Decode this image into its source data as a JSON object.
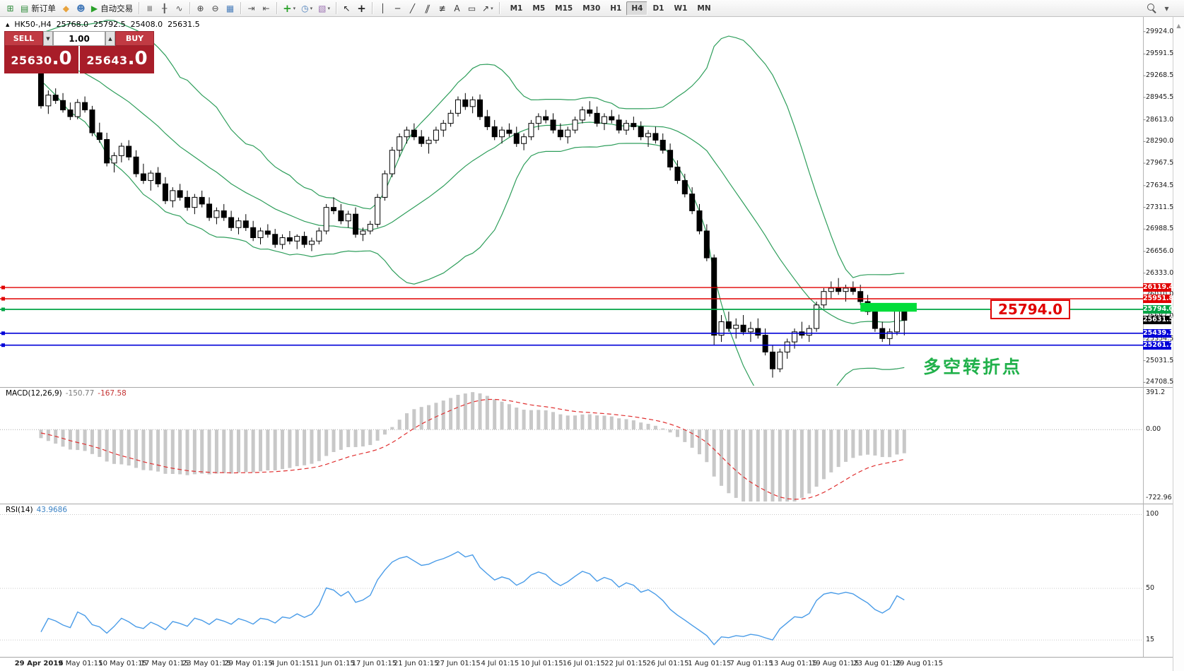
{
  "toolbar": {
    "items": [
      {
        "name": "new-chart-button",
        "glyph": "⊞",
        "color": "#2e8b3a"
      },
      {
        "name": "new-order-button",
        "glyph": "▤",
        "color": "#2e8b3a",
        "label": "新订单"
      },
      {
        "name": "metaeditor-button",
        "glyph": "◆",
        "color": "#e8a33d"
      },
      {
        "name": "community-button",
        "glyph": "☻",
        "color": "#4a7ebb"
      },
      {
        "name": "autotrading-button",
        "glyph": "▶",
        "color": "#2aa12a",
        "label": "自动交易"
      },
      {
        "sep": true
      },
      {
        "name": "bar-chart-button",
        "glyph": "≡",
        "color": "#555",
        "rotate": true
      },
      {
        "name": "candlestick-chart-button",
        "glyph": "╂",
        "color": "#555"
      },
      {
        "name": "line-chart-button",
        "glyph": "∿",
        "color": "#555"
      },
      {
        "sep": true
      },
      {
        "name": "zoom-in-button",
        "glyph": "⊕",
        "color": "#444"
      },
      {
        "name": "zoom-out-button",
        "glyph": "⊖",
        "color": "#444"
      },
      {
        "name": "tile-windows-button",
        "glyph": "▦",
        "color": "#4a7ebb"
      },
      {
        "sep": true
      },
      {
        "name": "auto-scroll-button",
        "glyph": "⇥",
        "color": "#555"
      },
      {
        "name": "chart-shift-button",
        "glyph": "⇤",
        "color": "#555"
      },
      {
        "sep": true
      },
      {
        "name": "indicators-dropdown",
        "glyph": "+",
        "color": "#2aa12a",
        "big": true,
        "dropdown": true
      },
      {
        "name": "periods-dropdown",
        "glyph": "◷",
        "color": "#4a7ebb",
        "dropdown": true
      },
      {
        "name": "templates-dropdown",
        "glyph": "▧",
        "color": "#9a6fb0",
        "dropdown": true
      },
      {
        "sep": true
      },
      {
        "name": "cursor-button",
        "glyph": "↖",
        "color": "#222"
      },
      {
        "name": "crosshair-button",
        "glyph": "+",
        "color": "#222",
        "big": true
      },
      {
        "sep": true
      },
      {
        "name": "vertical-line-button",
        "glyph": "│",
        "color": "#333"
      },
      {
        "name": "horizontal-line-button",
        "glyph": "─",
        "color": "#333"
      },
      {
        "name": "trendline-button",
        "glyph": "╱",
        "color": "#333"
      },
      {
        "name": "channel-button",
        "glyph": "∥",
        "color": "#333",
        "skew": true
      },
      {
        "name": "fibonacci-button",
        "glyph": "≢",
        "color": "#333"
      },
      {
        "name": "text-button",
        "glyph": "A",
        "color": "#333"
      },
      {
        "name": "label-button",
        "glyph": "▭",
        "color": "#333"
      },
      {
        "name": "arrows-dropdown",
        "glyph": "↗",
        "color": "#333",
        "dropdown": true
      },
      {
        "sep": true
      }
    ],
    "timeframes": [
      "M1",
      "M5",
      "M15",
      "M30",
      "H1",
      "H4",
      "D1",
      "W1",
      "MN"
    ],
    "active_timeframe": "H4",
    "right_items": [
      {
        "name": "search-button",
        "css": "search"
      },
      {
        "name": "toolbar-overflow-button",
        "glyph": "▾",
        "color": "#555"
      }
    ]
  },
  "chart_header": {
    "marker": "▲",
    "symbol_period": "HK50-,H4",
    "open": "25768.0",
    "high": "25792.5",
    "low": "25408.0",
    "close": "25631.5"
  },
  "trade_panel": {
    "sell_label": "SELL",
    "buy_label": "BUY",
    "lot_size": "1.00",
    "spin_down": "▼",
    "spin_up": "▲",
    "sell_price": "25630",
    "sell_pips": ".0",
    "buy_price": "25643",
    "buy_pips": ".0"
  },
  "indicators": {
    "macd": {
      "name": "MACD(12,26,9)",
      "value_main": "-150.77",
      "value_signal": "-167.58"
    },
    "rsi": {
      "name": "RSI(14)",
      "value": "43.9686"
    }
  },
  "annotations": {
    "callout_text": "25794.0",
    "turning_point_text": "多空转折点"
  },
  "ui": {
    "scrollbar_up": "▲"
  },
  "time_axis": {
    "labels": [
      "29 Apr 2019",
      "6 May 01:15",
      "10 May 01:15",
      "17 May 01:15",
      "23 May 01:15",
      "29 May 01:15",
      "4 Jun 01:15",
      "11 Jun 01:15",
      "17 Jun 01:15",
      "21 Jun 01:15",
      "27 Jun 01:15",
      "4 Jul 01:15",
      "10 Jul 01:15",
      "16 Jul 01:15",
      "22 Jul 01:15",
      "26 Jul 01:15",
      "1 Aug 01:15",
      "7 Aug 01:15",
      "13 Aug 01:15",
      "19 Aug 01:15",
      "23 Aug 01:15",
      "29 Aug 01:15"
    ]
  },
  "chart_data": [
    {
      "id": "price",
      "type": "candlestick",
      "symbol": "HK50-",
      "timeframe": "H4",
      "ylim": [
        24660,
        30100
      ],
      "yticks": [
        29924.0,
        29591.5,
        29268.5,
        28945.5,
        28613.0,
        28290.0,
        27967.5,
        27634.5,
        27311.5,
        26988.5,
        26656.0,
        26333.0,
        26010.0,
        25687.0,
        25354.5,
        25031.5,
        24708.5
      ],
      "bull_color": "#ffffff",
      "bear_color": "#000000",
      "wick_color": "#000000",
      "bollinger": {
        "period": 20,
        "deviation": 2,
        "color": "#2e9e5b"
      },
      "warmup_closes": [
        29640,
        29685,
        29625,
        29670,
        29610,
        29655,
        29595,
        29640,
        29580,
        29625,
        29565,
        29610,
        29550,
        29595,
        29535,
        29580,
        29520,
        29565,
        29505,
        29450
      ],
      "ohlc": [
        [
          29300,
          29420,
          28780,
          28820
        ],
        [
          28820,
          29050,
          28700,
          28980
        ],
        [
          28980,
          29080,
          28850,
          28900
        ],
        [
          28900,
          29010,
          28720,
          28760
        ],
        [
          28760,
          28870,
          28610,
          28660
        ],
        [
          28660,
          28920,
          28620,
          28870
        ],
        [
          28870,
          28960,
          28720,
          28760
        ],
        [
          28760,
          28820,
          28370,
          28420
        ],
        [
          28420,
          28570,
          28270,
          28320
        ],
        [
          28320,
          28420,
          27920,
          27970
        ],
        [
          27970,
          28130,
          27830,
          28080
        ],
        [
          28080,
          28270,
          27980,
          28220
        ],
        [
          28220,
          28310,
          28010,
          28060
        ],
        [
          28060,
          28160,
          27760,
          27810
        ],
        [
          27810,
          27960,
          27660,
          27710
        ],
        [
          27710,
          27860,
          27560,
          27820
        ],
        [
          27820,
          27910,
          27610,
          27660
        ],
        [
          27660,
          27760,
          27360,
          27410
        ],
        [
          27410,
          27610,
          27310,
          27560
        ],
        [
          27560,
          27660,
          27410,
          27460
        ],
        [
          27460,
          27560,
          27260,
          27310
        ],
        [
          27310,
          27510,
          27210,
          27460
        ],
        [
          27460,
          27560,
          27310,
          27360
        ],
        [
          27360,
          27460,
          27110,
          27160
        ],
        [
          27160,
          27310,
          27060,
          27260
        ],
        [
          27260,
          27360,
          27110,
          27160
        ],
        [
          27160,
          27260,
          26960,
          27010
        ],
        [
          27010,
          27160,
          26910,
          27110
        ],
        [
          27110,
          27210,
          26960,
          27010
        ],
        [
          27010,
          27110,
          26810,
          26860
        ],
        [
          26860,
          27010,
          26760,
          26960
        ],
        [
          26960,
          27060,
          26860,
          26910
        ],
        [
          26910,
          26990,
          26710,
          26760
        ],
        [
          26760,
          26910,
          26690,
          26860
        ],
        [
          26860,
          26960,
          26760,
          26810
        ],
        [
          26810,
          26910,
          26690,
          26880
        ],
        [
          26880,
          26950,
          26710,
          26760
        ],
        [
          26760,
          26860,
          26660,
          26810
        ],
        [
          26810,
          27010,
          26760,
          26960
        ],
        [
          26960,
          27360,
          26910,
          27310
        ],
        [
          27310,
          27460,
          27210,
          27260
        ],
        [
          27260,
          27360,
          27060,
          27110
        ],
        [
          27110,
          27260,
          27010,
          27210
        ],
        [
          27210,
          27310,
          26860,
          26910
        ],
        [
          26910,
          27010,
          26810,
          26960
        ],
        [
          26960,
          27110,
          26910,
          27060
        ],
        [
          27060,
          27510,
          27010,
          27460
        ],
        [
          27460,
          27860,
          27410,
          27810
        ],
        [
          27810,
          28210,
          27760,
          28160
        ],
        [
          28160,
          28410,
          28060,
          28360
        ],
        [
          28360,
          28510,
          28260,
          28460
        ],
        [
          28460,
          28560,
          28310,
          28360
        ],
        [
          28360,
          28460,
          28210,
          28260
        ],
        [
          28260,
          28360,
          28110,
          28310
        ],
        [
          28310,
          28510,
          28260,
          28460
        ],
        [
          28460,
          28610,
          28360,
          28560
        ],
        [
          28560,
          28760,
          28510,
          28710
        ],
        [
          28710,
          28960,
          28660,
          28910
        ],
        [
          28910,
          29010,
          28760,
          28810
        ],
        [
          28810,
          28960,
          28710,
          28910
        ],
        [
          28910,
          28990,
          28610,
          28660
        ],
        [
          28660,
          28760,
          28460,
          28510
        ],
        [
          28510,
          28610,
          28310,
          28360
        ],
        [
          28360,
          28510,
          28260,
          28460
        ],
        [
          28460,
          28560,
          28360,
          28410
        ],
        [
          28410,
          28510,
          28210,
          28260
        ],
        [
          28260,
          28410,
          28160,
          28360
        ],
        [
          28360,
          28610,
          28310,
          28560
        ],
        [
          28560,
          28710,
          28460,
          28660
        ],
        [
          28660,
          28760,
          28560,
          28610
        ],
        [
          28610,
          28710,
          28410,
          28460
        ],
        [
          28460,
          28560,
          28310,
          28360
        ],
        [
          28360,
          28510,
          28260,
          28460
        ],
        [
          28460,
          28660,
          28410,
          28610
        ],
        [
          28610,
          28810,
          28560,
          28760
        ],
        [
          28760,
          28890,
          28660,
          28710
        ],
        [
          28710,
          28810,
          28510,
          28560
        ],
        [
          28560,
          28710,
          28460,
          28660
        ],
        [
          28660,
          28760,
          28560,
          28610
        ],
        [
          28610,
          28690,
          28410,
          28460
        ],
        [
          28460,
          28610,
          28390,
          28560
        ],
        [
          28560,
          28660,
          28460,
          28510
        ],
        [
          28510,
          28590,
          28310,
          28360
        ],
        [
          28360,
          28460,
          28210,
          28410
        ],
        [
          28410,
          28510,
          28260,
          28310
        ],
        [
          28310,
          28410,
          28110,
          28160
        ],
        [
          28160,
          28260,
          27860,
          27910
        ],
        [
          27910,
          28010,
          27660,
          27710
        ],
        [
          27710,
          27810,
          27460,
          27510
        ],
        [
          27510,
          27610,
          27210,
          27260
        ],
        [
          27260,
          27360,
          26910,
          26960
        ],
        [
          26960,
          27060,
          26510,
          26560
        ],
        [
          26560,
          26610,
          25260,
          25410
        ],
        [
          25410,
          25710,
          25310,
          25610
        ],
        [
          25610,
          25760,
          25460,
          25510
        ],
        [
          25510,
          25660,
          25360,
          25560
        ],
        [
          25560,
          25710,
          25410,
          25460
        ],
        [
          25460,
          25610,
          25310,
          25510
        ],
        [
          25510,
          25660,
          25360,
          25410
        ],
        [
          25410,
          25510,
          25110,
          25160
        ],
        [
          25160,
          25260,
          24780,
          24910
        ],
        [
          24910,
          25210,
          24860,
          25160
        ],
        [
          25160,
          25360,
          25060,
          25310
        ],
        [
          25310,
          25510,
          25210,
          25460
        ],
        [
          25460,
          25610,
          25360,
          25410
        ],
        [
          25410,
          25560,
          25310,
          25510
        ],
        [
          25510,
          25910,
          25460,
          25860
        ],
        [
          25860,
          26110,
          25810,
          26060
        ],
        [
          26060,
          26210,
          25960,
          26110
        ],
        [
          26110,
          26260,
          26010,
          26060
        ],
        [
          26060,
          26160,
          25910,
          26110
        ],
        [
          26110,
          26210,
          26010,
          26060
        ],
        [
          26060,
          26160,
          25860,
          25910
        ],
        [
          25910,
          26010,
          25710,
          25760
        ],
        [
          25760,
          25810,
          25460,
          25510
        ],
        [
          25510,
          25610,
          25310,
          25360
        ],
        [
          25360,
          25510,
          25260,
          25460
        ],
        [
          25460,
          25810,
          25410,
          25780
        ],
        [
          25768,
          25792.5,
          25408,
          25631.5
        ]
      ],
      "hlines": [
        {
          "value": 26119.4,
          "color": "#e00000",
          "width": 1.4
        },
        {
          "value": 25951.8,
          "color": "#e00000",
          "width": 1.4
        },
        {
          "value": 25794.0,
          "color": "#00a445",
          "width": 1.8
        },
        {
          "value": 25439.1,
          "color": "#0000d8",
          "width": 1.6
        },
        {
          "value": 25261.7,
          "color": "#0000d8",
          "width": 1.6
        }
      ],
      "last_price": {
        "value": 25631.5,
        "color": "#000000"
      },
      "rect": {
        "from_index": 112,
        "to_index": 119.7,
        "top": 25890,
        "bottom": 25760,
        "color": "#00dd3a"
      }
    },
    {
      "id": "macd",
      "type": "macd-histogram",
      "params": "12,26,9",
      "ylim": [
        -760,
        420
      ],
      "ytick_values": [
        391.2,
        0,
        -722.96
      ],
      "ytick_labels": [
        "391.2",
        "0.00",
        "-722.96"
      ],
      "histogram_color": "#c8c8c8",
      "signal_color": "#e03030"
    },
    {
      "id": "rsi",
      "type": "line",
      "period": 14,
      "ylim": [
        5,
        105
      ],
      "ytick_values": [
        100,
        50,
        15
      ],
      "ytick_labels": [
        "100",
        "50",
        "15"
      ],
      "color": "#4a9ce8"
    }
  ]
}
